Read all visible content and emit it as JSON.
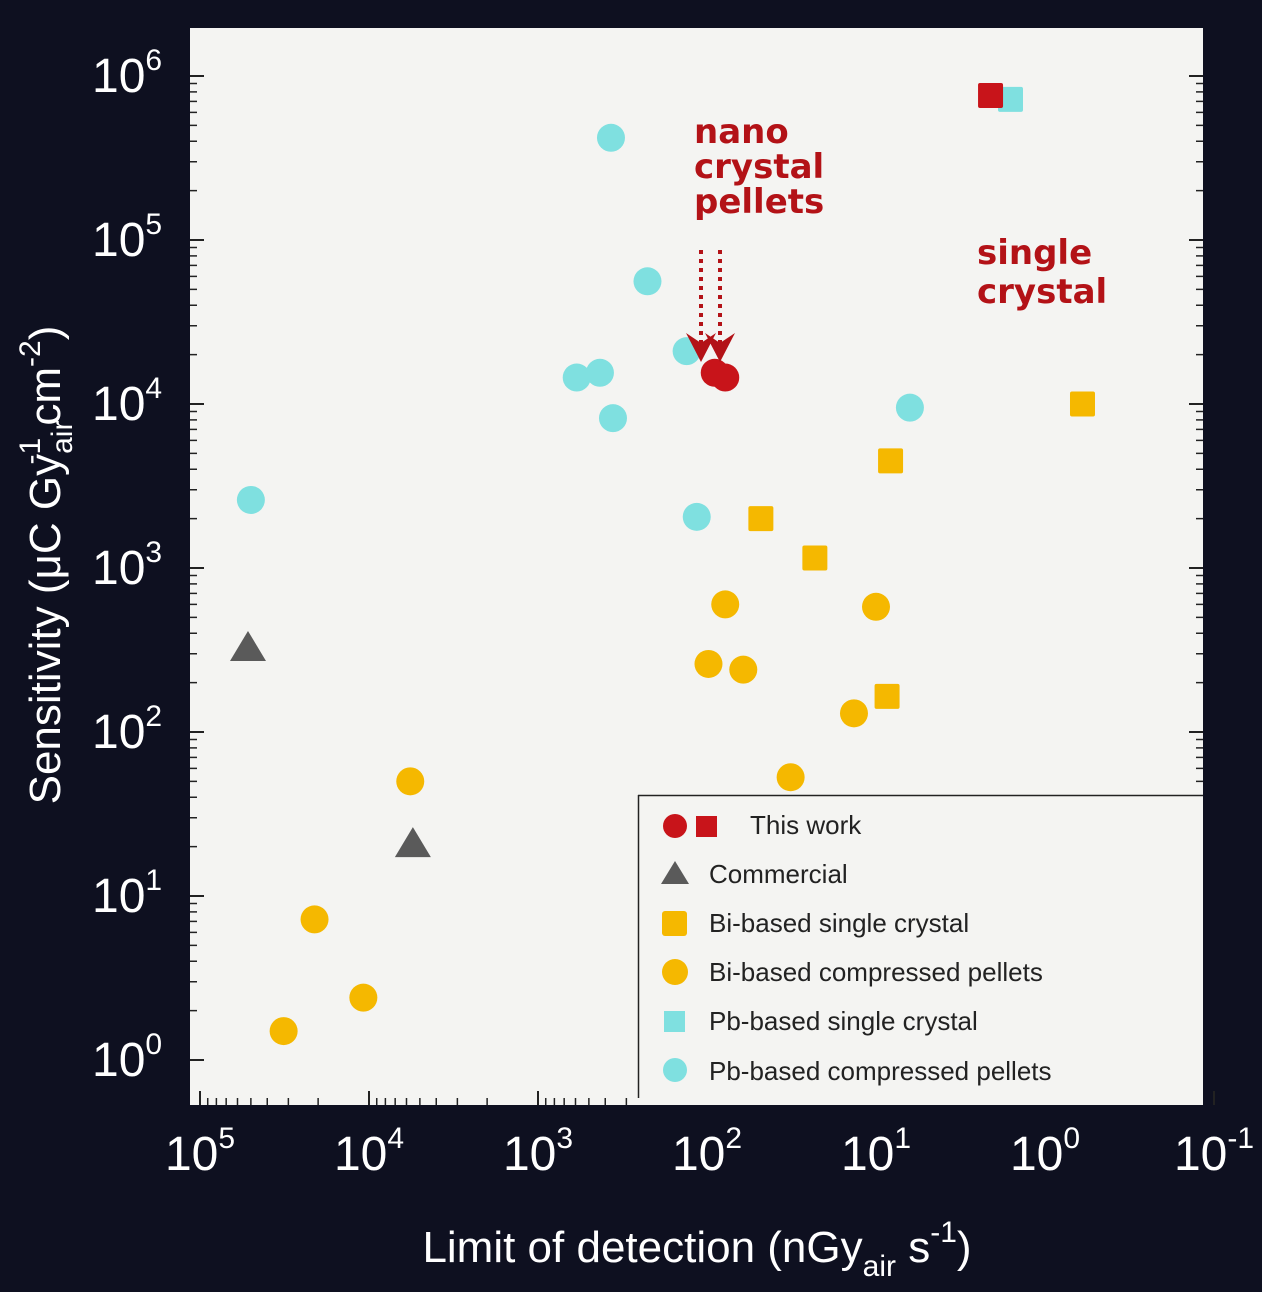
{
  "chart_data": {
    "type": "scatter",
    "xlabel": "Limit of detection (nGy_air s^-1)",
    "ylabel": "Sensitivity (μC Gy_air^-1 cm^-2)",
    "x_scale": "log",
    "y_scale": "log",
    "x_reversed": true,
    "xlim": [
      100000,
      0.1
    ],
    "ylim": [
      0.55,
      1800000
    ],
    "x_ticks": [
      "10^5",
      "10^4",
      "10^3",
      "10^2",
      "10^1",
      "10^0",
      "10^-1"
    ],
    "y_ticks": [
      "10^0",
      "10^1",
      "10^2",
      "10^3",
      "10^4",
      "10^5",
      "10^6"
    ],
    "grid": false,
    "legend_position": "bottom-right",
    "series": [
      {
        "name": "This work",
        "marker": "circle+square",
        "color": "#c8141a",
        "points": [
          {
            "x": 90,
            "y": 15500,
            "marker": "circle"
          },
          {
            "x": 78,
            "y": 14500,
            "marker": "circle"
          },
          {
            "x": 2.1,
            "y": 760000,
            "marker": "square"
          }
        ]
      },
      {
        "name": "Commercial",
        "marker": "triangle",
        "color": "#5a5a5a",
        "points": [
          {
            "x": 52000,
            "y": 330
          },
          {
            "x": 5500,
            "y": 21
          }
        ]
      },
      {
        "name": "Bi-based single crystal",
        "marker": "square",
        "color": "#f5b800",
        "points": [
          {
            "x": 48,
            "y": 2000
          },
          {
            "x": 23,
            "y": 1150
          },
          {
            "x": 8.2,
            "y": 4500
          },
          {
            "x": 8.6,
            "y": 165
          },
          {
            "x": 0.6,
            "y": 10000
          }
        ]
      },
      {
        "name": "Bi-based compressed pellets",
        "marker": "circle",
        "color": "#f5b800",
        "points": [
          {
            "x": 5700,
            "y": 50
          },
          {
            "x": 21000,
            "y": 7.2
          },
          {
            "x": 10800,
            "y": 2.4
          },
          {
            "x": 32000,
            "y": 1.5
          },
          {
            "x": 78,
            "y": 600
          },
          {
            "x": 98,
            "y": 260
          },
          {
            "x": 61,
            "y": 240
          },
          {
            "x": 32,
            "y": 53
          },
          {
            "x": 13.5,
            "y": 130
          },
          {
            "x": 10,
            "y": 580
          }
        ]
      },
      {
        "name": "Pb-based single crystal",
        "marker": "square",
        "color": "#7fe0e0",
        "points": [
          {
            "x": 1.6,
            "y": 720000
          }
        ]
      },
      {
        "name": "Pb-based compressed pellets",
        "marker": "circle",
        "color": "#7fe0e0",
        "points": [
          {
            "x": 50000,
            "y": 2600
          },
          {
            "x": 370,
            "y": 420000
          },
          {
            "x": 225,
            "y": 56000
          },
          {
            "x": 132,
            "y": 21000
          },
          {
            "x": 430,
            "y": 15500
          },
          {
            "x": 590,
            "y": 14500
          },
          {
            "x": 360,
            "y": 8200
          },
          {
            "x": 115,
            "y": 2050
          },
          {
            "x": 6.3,
            "y": 9500
          }
        ]
      }
    ],
    "annotations": [
      {
        "text_lines": [
          "nano",
          "crystal",
          "pellets"
        ],
        "points_to": "This work (circles)"
      },
      {
        "text_lines": [
          "single",
          "crystal"
        ],
        "points_to": "This work (square)"
      }
    ]
  },
  "axes": {
    "x_title_main": "Limit of detection (nGy",
    "x_title_sub": "air",
    "x_title_after": " s",
    "x_title_sup": "-1",
    "x_title_close": ")",
    "y_title_main": "Sensitivity (μC Gy",
    "y_title_sub": "air",
    "y_title_sup1": "-1",
    "y_title_mid": " cm",
    "y_title_sup2": "-2",
    "y_title_close": ")"
  },
  "colors": {
    "background": "#0e1020",
    "plot_area": "#f4f4f2",
    "this_work": "#c8141a",
    "commercial": "#5a5a5a",
    "bi_based": "#f5b800",
    "pb_based": "#7fe0e0",
    "annotation": "#b31217"
  }
}
